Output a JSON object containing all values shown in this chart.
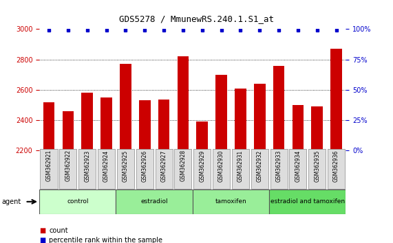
{
  "title": "GDS5278 / MmunewRS.240.1.S1_at",
  "samples": [
    "GSM362921",
    "GSM362922",
    "GSM362923",
    "GSM362924",
    "GSM362925",
    "GSM362926",
    "GSM362927",
    "GSM362928",
    "GSM362929",
    "GSM362930",
    "GSM362931",
    "GSM362932",
    "GSM362933",
    "GSM362934",
    "GSM362935",
    "GSM362936"
  ],
  "counts": [
    2520,
    2460,
    2580,
    2550,
    2770,
    2530,
    2535,
    2820,
    2390,
    2700,
    2610,
    2640,
    2760,
    2500,
    2490,
    2870
  ],
  "percentile": [
    99,
    99,
    99,
    99,
    99,
    99,
    99,
    99,
    99,
    99,
    99,
    99,
    99,
    99,
    99,
    99
  ],
  "bar_color": "#cc0000",
  "dot_color": "#0000cc",
  "ylim": [
    2200,
    3000
  ],
  "y2lim": [
    0,
    100
  ],
  "yticks": [
    2200,
    2400,
    2600,
    2800,
    3000
  ],
  "y2ticks": [
    0,
    25,
    50,
    75,
    100
  ],
  "groups": [
    {
      "label": "control",
      "start": 0,
      "end": 4,
      "color": "#ccffcc"
    },
    {
      "label": "estradiol",
      "start": 4,
      "end": 8,
      "color": "#99ee99"
    },
    {
      "label": "tamoxifen",
      "start": 8,
      "end": 12,
      "color": "#99ee99"
    },
    {
      "label": "estradiol and tamoxifen",
      "start": 12,
      "end": 16,
      "color": "#66dd66"
    }
  ],
  "agent_label": "agent",
  "legend_count_label": "count",
  "legend_pct_label": "percentile rank within the sample",
  "xlabel_color": "#cc0000",
  "title_color": "#000000",
  "grid_color": "#000000",
  "group_box_color": "#aaaaaa",
  "sample_box_bg": "#dddddd"
}
